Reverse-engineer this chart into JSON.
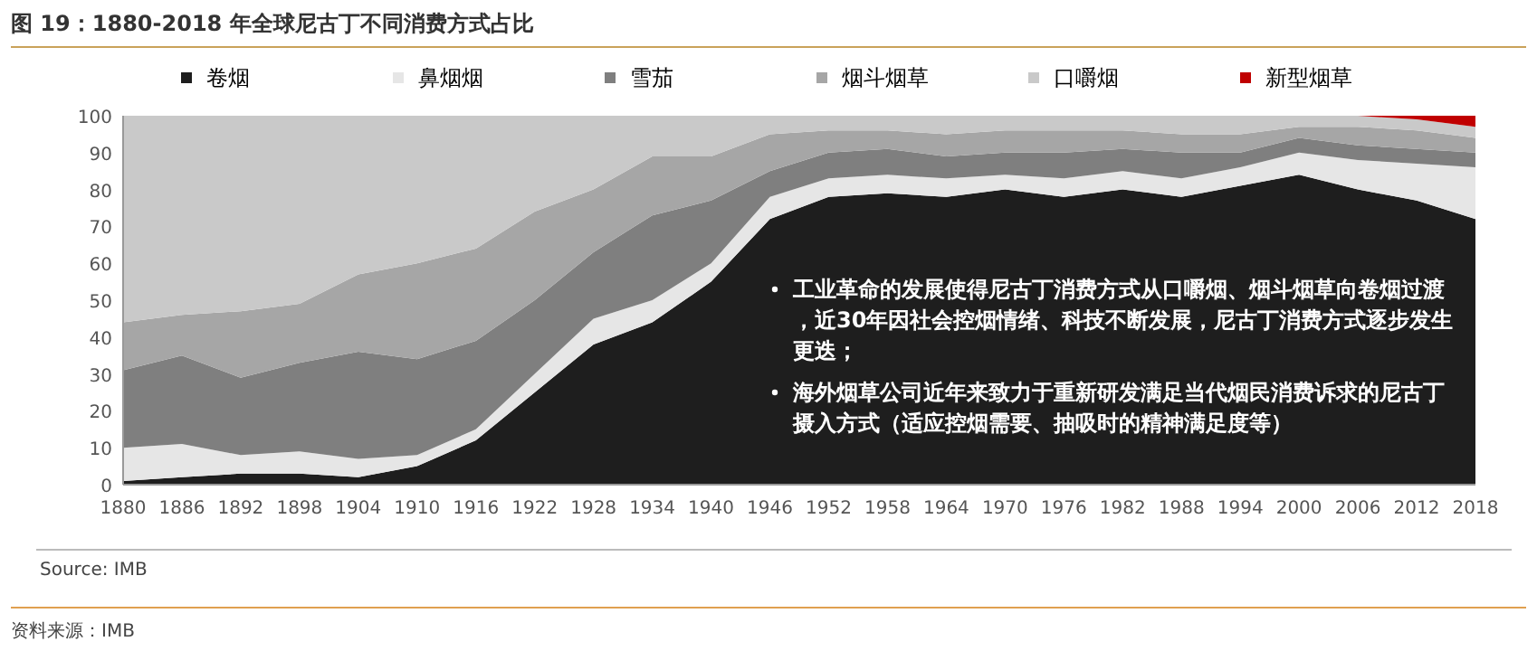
{
  "chart_data": {
    "type": "area",
    "stacked": true,
    "title": "图 19：1880-2018 年全球尼古丁不同消费方式占比",
    "x": [
      1880,
      1886,
      1892,
      1898,
      1904,
      1910,
      1916,
      1922,
      1928,
      1934,
      1940,
      1946,
      1952,
      1958,
      1964,
      1970,
      1976,
      1982,
      1988,
      1994,
      2000,
      2006,
      2012,
      2018
    ],
    "xlim": [
      1880,
      2018
    ],
    "xticks": [
      1880,
      1886,
      1892,
      1898,
      1904,
      1910,
      1916,
      1922,
      1928,
      1934,
      1940,
      1946,
      1952,
      1958,
      1964,
      1970,
      1976,
      1982,
      1988,
      1994,
      2000,
      2006,
      2012,
      2018
    ],
    "ylim": [
      0,
      100
    ],
    "yticks": [
      0,
      10,
      20,
      30,
      40,
      50,
      60,
      70,
      80,
      90,
      100
    ],
    "grid": false,
    "legend": "top",
    "series": [
      {
        "name": "卷烟",
        "color": "#1e1e1e",
        "values": [
          1,
          2,
          3,
          3,
          2,
          5,
          12,
          25,
          38,
          44,
          55,
          72,
          78,
          79,
          78,
          80,
          78,
          80,
          78,
          81,
          84,
          80,
          77,
          72
        ]
      },
      {
        "name": "鼻烟烟",
        "color": "#e6e6e6",
        "values": [
          9,
          9,
          5,
          6,
          5,
          3,
          3,
          5,
          7,
          6,
          5,
          6,
          5,
          5,
          5,
          4,
          5,
          5,
          5,
          5,
          6,
          8,
          10,
          14
        ]
      },
      {
        "name": "雪茄",
        "color": "#7f7f7f",
        "values": [
          21,
          24,
          21,
          24,
          29,
          26,
          24,
          20,
          18,
          23,
          17,
          7,
          7,
          7,
          6,
          6,
          7,
          6,
          7,
          4,
          4,
          4,
          4,
          4
        ]
      },
      {
        "name": "烟斗烟草",
        "color": "#a6a6a6",
        "values": [
          13,
          11,
          18,
          16,
          21,
          26,
          25,
          24,
          17,
          16,
          12,
          10,
          6,
          5,
          6,
          6,
          6,
          5,
          5,
          5,
          3,
          5,
          5,
          4
        ]
      },
      {
        "name": "口嚼烟",
        "color": "#c9c9c9",
        "values": [
          56,
          54,
          53,
          51,
          43,
          40,
          36,
          26,
          20,
          11,
          11,
          5,
          4,
          4,
          5,
          4,
          4,
          4,
          5,
          5,
          3,
          3,
          3,
          3
        ]
      },
      {
        "name": "新型烟草",
        "color": "#c00000",
        "values": [
          0,
          0,
          0,
          0,
          0,
          0,
          0,
          0,
          0,
          0,
          0,
          0,
          0,
          0,
          0,
          0,
          0,
          0,
          0,
          0,
          0,
          0,
          1,
          3
        ]
      }
    ],
    "annotations": [
      "工业革命的发展使得尼古丁消费方式从口嚼烟、烟斗烟草向卷烟过渡，近30年因社会控烟情绪、科技不断发展，尼古丁消费方式逐步发生更迭；",
      "海外烟草公司近年来致力于重新研发满足当代烟民消费诉求的尼古丁摄入方式（适应控烟需要、抽吸时的精神满足度等）",
      "Source:  IMB",
      "资料来源：IMB"
    ]
  }
}
